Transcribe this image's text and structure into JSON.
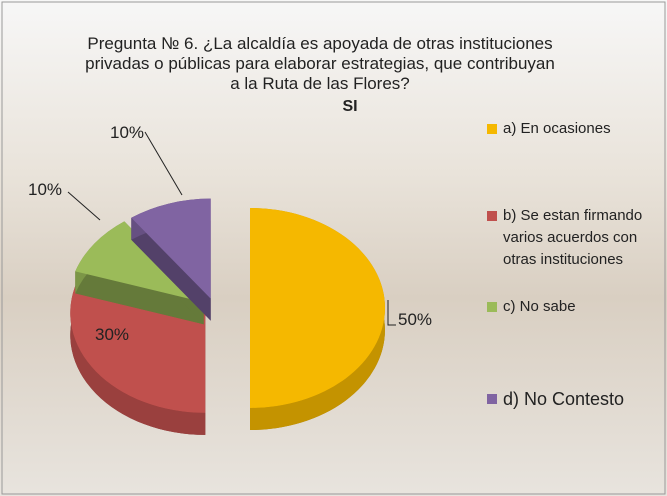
{
  "chart_data": {
    "type": "pie",
    "title": "Pregunta № 6. ¿La alcaldía es apoyada de otras instituciones privadas o públicas para elaborar  estrategias, que contribuyan a la Ruta de las Flores?",
    "subtitle": "SI",
    "categories": [
      "a) En ocasiones",
      "b) Se estan firmando varios acuerdos con otras instituciones",
      "c) No sabe",
      "d) No Contesto"
    ],
    "values": [
      50,
      30,
      10,
      10
    ],
    "value_labels": [
      "50%",
      "30%",
      "10%",
      "10%"
    ],
    "colors": [
      "#f5b800",
      "#c0504d",
      "#9bbb59",
      "#8064a2"
    ]
  }
}
